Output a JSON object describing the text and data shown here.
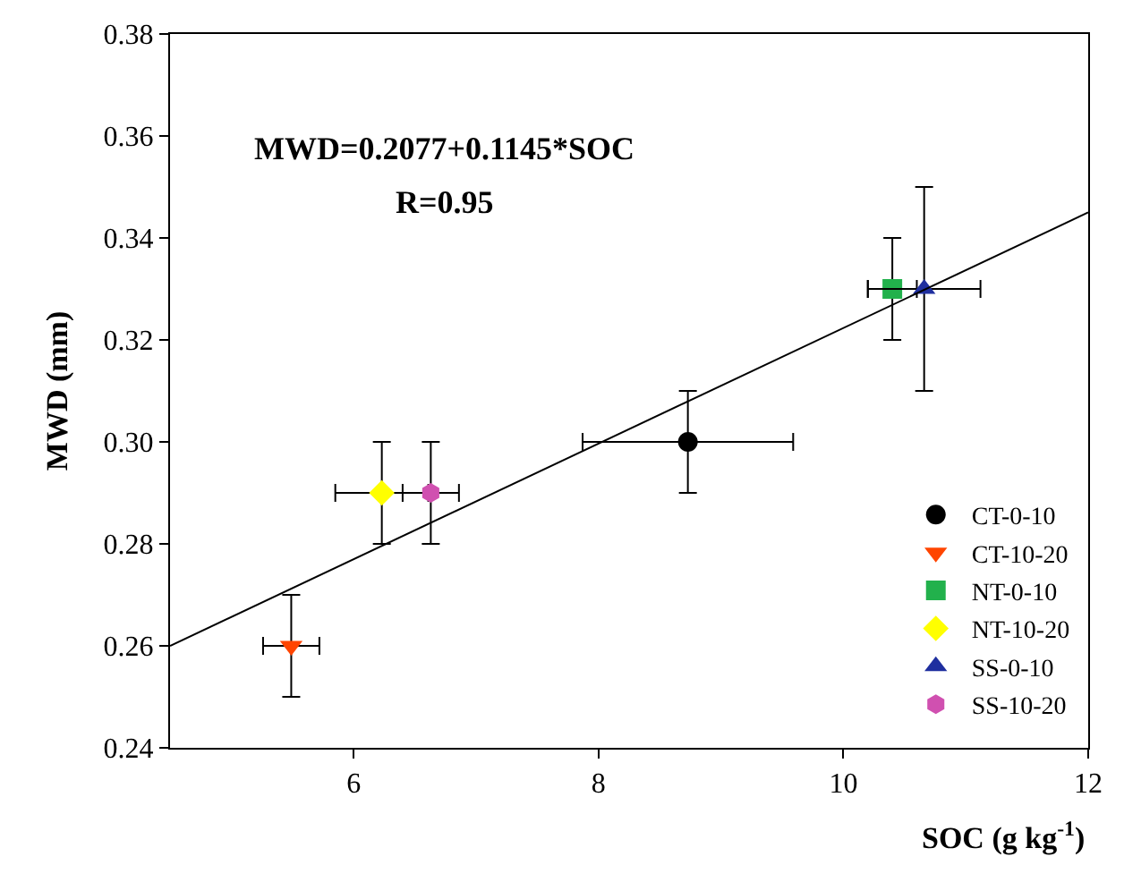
{
  "chart_data": {
    "type": "scatter",
    "xlabel": "SOC (g kg$^{-1}$)",
    "ylabel": "MWD (mm)",
    "annotations": [
      "MWD=0.2077+0.1145*SOC",
      "R=0.95"
    ],
    "xlim": [
      4.5,
      12
    ],
    "xticks": [
      6,
      8,
      10,
      12
    ],
    "ylim": [
      0.24,
      0.38
    ],
    "yticks": [
      {
        "value": 0.24,
        "label": "0.24"
      },
      {
        "value": 0.26,
        "label": "0.26"
      },
      {
        "value": 0.28,
        "label": "0.28"
      },
      {
        "value": 0.3,
        "label": "0.30"
      },
      {
        "value": 0.32,
        "label": "0.32"
      },
      {
        "value": 0.34,
        "label": "0.34"
      },
      {
        "value": 0.36,
        "label": "0.36"
      },
      {
        "value": 0.38,
        "label": "0.38"
      }
    ],
    "legend": "bottom right",
    "series": [
      {
        "name": "CT-0-10",
        "color": "#000000",
        "marker": "circle",
        "x": [
          8.73
        ],
        "values": [
          0.3
        ],
        "errors": [
          0.01
        ],
        "xerrors": [
          0.86
        ]
      },
      {
        "name": "CT-10-20",
        "color": "#ff4500",
        "marker": "triangle-down",
        "x": [
          5.49
        ],
        "values": [
          0.26
        ],
        "errors": [
          0.01
        ],
        "xerrors": [
          0.23
        ]
      },
      {
        "name": "NT-0-10",
        "color": "#22b14c",
        "marker": "square",
        "x": [
          10.4
        ],
        "values": [
          0.33
        ],
        "errors": [
          0.01
        ],
        "xerrors": [
          0.2
        ]
      },
      {
        "name": "NT-10-20",
        "color": "#ffff00",
        "marker": "diamond",
        "x": [
          6.23
        ],
        "values": [
          0.29
        ],
        "errors": [
          0.01
        ],
        "xerrors": [
          0.38
        ]
      },
      {
        "name": "SS-0-10",
        "color": "#1f2f9f",
        "marker": "triangle",
        "x": [
          10.66
        ],
        "values": [
          0.33
        ],
        "errors": [
          0.02
        ],
        "xerrors": [
          0.46
        ]
      },
      {
        "name": "SS-10-20",
        "color": "#d050b0",
        "x": [
          6.63
        ],
        "values": [
          0.29
        ],
        "errors": [
          0.01
        ],
        "xerrors": [
          0.23
        ]
      },
      {
        "type": "line",
        "color": "#000000",
        "marker": "none",
        "x": [
          4.5,
          12
        ],
        "values": [
          0.26,
          0.345
        ]
      }
    ]
  }
}
